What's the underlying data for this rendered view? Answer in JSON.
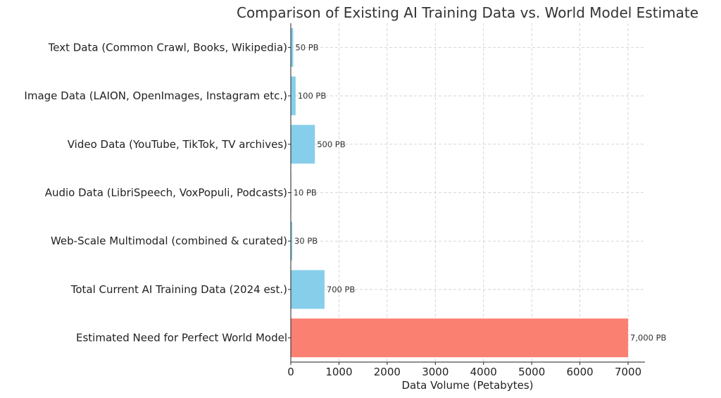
{
  "chart_data": {
    "type": "bar",
    "orientation": "horizontal",
    "title": "Comparison of Existing AI Training Data vs. World Model Estimate",
    "xlabel": "Data Volume (Petabytes)",
    "ylabel": "",
    "categories": [
      "Text Data (Common Crawl, Books, Wikipedia)",
      "Image Data (LAION, OpenImages, Instagram etc.)",
      "Video Data (YouTube, TikTok, TV archives)",
      "Audio Data (LibriSpeech, VoxPopuli, Podcasts)",
      "Web-Scale Multimodal (combined & curated)",
      "Total Current AI Training Data (2024 est.)",
      "Estimated Need for Perfect World Model"
    ],
    "values": [
      50,
      100,
      500,
      10,
      30,
      700,
      7000
    ],
    "data_labels": [
      "50 PB",
      "100 PB",
      "500 PB",
      "10 PB",
      "30 PB",
      "700 PB",
      "7,000 PB"
    ],
    "colors": [
      "#87CEEB",
      "#87CEEB",
      "#87CEEB",
      "#87CEEB",
      "#87CEEB",
      "#87CEEB",
      "#FA8072"
    ],
    "xticks": [
      0,
      1000,
      2000,
      3000,
      4000,
      5000,
      6000,
      7000
    ],
    "xtick_labels": [
      "0",
      "1000",
      "2000",
      "3000",
      "4000",
      "5000",
      "6000",
      "7000"
    ],
    "xlim": [
      0,
      7350
    ],
    "grid": true
  }
}
